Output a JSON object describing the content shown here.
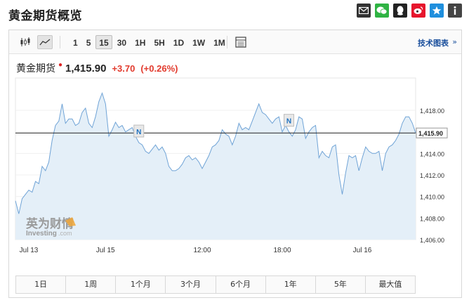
{
  "page": {
    "title": "黄金期货概览"
  },
  "share": {
    "buttons": [
      {
        "name": "email-share-icon",
        "color": "#333333"
      },
      {
        "name": "wechat-share-icon",
        "color": "#2fb343"
      },
      {
        "name": "qq-share-icon",
        "color": "#222222"
      },
      {
        "name": "weibo-share-icon",
        "color": "#e6162d"
      },
      {
        "name": "qzone-share-icon",
        "color": "#1f8fdd"
      },
      {
        "name": "info-icon",
        "color": "#444444"
      }
    ]
  },
  "toolbar": {
    "chart_types": [
      {
        "name": "candlestick-chart-icon",
        "active": false
      },
      {
        "name": "area-chart-icon",
        "active": true
      }
    ],
    "timeframes": [
      {
        "label": "1",
        "active": false
      },
      {
        "label": "5",
        "active": false
      },
      {
        "label": "15",
        "active": true
      },
      {
        "label": "30",
        "active": false
      },
      {
        "label": "1H",
        "active": false
      },
      {
        "label": "5H",
        "active": false
      },
      {
        "label": "1D",
        "active": false
      },
      {
        "label": "1W",
        "active": false
      },
      {
        "label": "1M",
        "active": false
      }
    ],
    "table_icon": "data-table-icon",
    "tech_chart_label": "技术图表",
    "tech_chart_arrow": "»"
  },
  "quote": {
    "name": "黄金期货",
    "live_marker": "●",
    "price": "1,415.90",
    "change": "+3.70",
    "change_pct": "(+0.26%)",
    "up_color": "#e23b2e"
  },
  "watermark": {
    "cn": "英为财情",
    "en": "Investing",
    "domain": ".com"
  },
  "chart_data": {
    "type": "area",
    "title": "",
    "xlabel": "",
    "ylabel": "",
    "ylim": [
      1406,
      1421
    ],
    "y_ticks": [
      "1,406.00",
      "1,408.00",
      "1,410.00",
      "1,412.00",
      "1,414.00",
      "1,416.00",
      "1,418.00"
    ],
    "y_tick_values": [
      1406,
      1408,
      1410,
      1412,
      1414,
      1416,
      1418
    ],
    "x_ticks": [
      {
        "label": "Jul 13",
        "index": 4
      },
      {
        "label": "Jul 15",
        "index": 27
      },
      {
        "label": "12:00",
        "index": 56
      },
      {
        "label": "18:00",
        "index": 80
      },
      {
        "label": "Jul 16",
        "index": 104
      }
    ],
    "current_price": 1415.9,
    "current_label": "1,415.90",
    "series": [
      {
        "values": [
          1409.6,
          1408.4,
          1409.8,
          1410.2,
          1410.6,
          1410.4,
          1411.4,
          1411.2,
          1412.8,
          1412.4,
          1413.2,
          1415.2,
          1416.6,
          1417.0,
          1418.6,
          1416.8,
          1417.2,
          1417.2,
          1416.6,
          1416.8,
          1417.8,
          1418.2,
          1416.8,
          1416.4,
          1417.4,
          1418.8,
          1419.6,
          1418.6,
          1415.6,
          1416.2,
          1416.9,
          1416.4,
          1416.6,
          1416.0,
          1416.2,
          1416.4,
          1415.6,
          1415.0,
          1414.8,
          1414.2,
          1414.0,
          1414.4,
          1414.8,
          1414.3,
          1414.6,
          1414.0,
          1412.8,
          1412.4,
          1412.4,
          1412.6,
          1413.0,
          1413.6,
          1413.8,
          1413.4,
          1413.6,
          1413.2,
          1412.6,
          1413.2,
          1413.8,
          1414.6,
          1414.8,
          1415.2,
          1416.2,
          1415.8,
          1415.6,
          1414.8,
          1415.6,
          1416.8,
          1416.2,
          1416.4,
          1416.2,
          1417.0,
          1417.8,
          1418.6,
          1417.8,
          1417.6,
          1417.2,
          1416.8,
          1417.2,
          1417.4,
          1416.0,
          1416.6,
          1416.0,
          1415.6,
          1416.2,
          1417.4,
          1417.2,
          1415.4,
          1416.0,
          1416.4,
          1416.6,
          1413.6,
          1414.2,
          1413.8,
          1413.6,
          1414.6,
          1414.8,
          1412.0,
          1410.2,
          1412.2,
          1413.8,
          1413.6,
          1413.8,
          1412.4,
          1413.6,
          1414.6,
          1414.2,
          1414.0,
          1414.0,
          1414.2,
          1412.4,
          1414.0,
          1414.6,
          1414.8,
          1415.2,
          1415.8,
          1416.8,
          1417.4,
          1417.4,
          1416.8,
          1415.9
        ]
      }
    ],
    "event_markers": [
      {
        "label": "N",
        "index": 37
      },
      {
        "label": "N",
        "index": 82
      }
    ],
    "colors": {
      "line": "#6fa3d6",
      "fill": "#e4eff8",
      "current_line": "#222222",
      "grid": "#f0f0f0"
    }
  },
  "periods": [
    "1日",
    "1周",
    "1个月",
    "3个月",
    "6个月",
    "1年",
    "5年",
    "最大值"
  ]
}
